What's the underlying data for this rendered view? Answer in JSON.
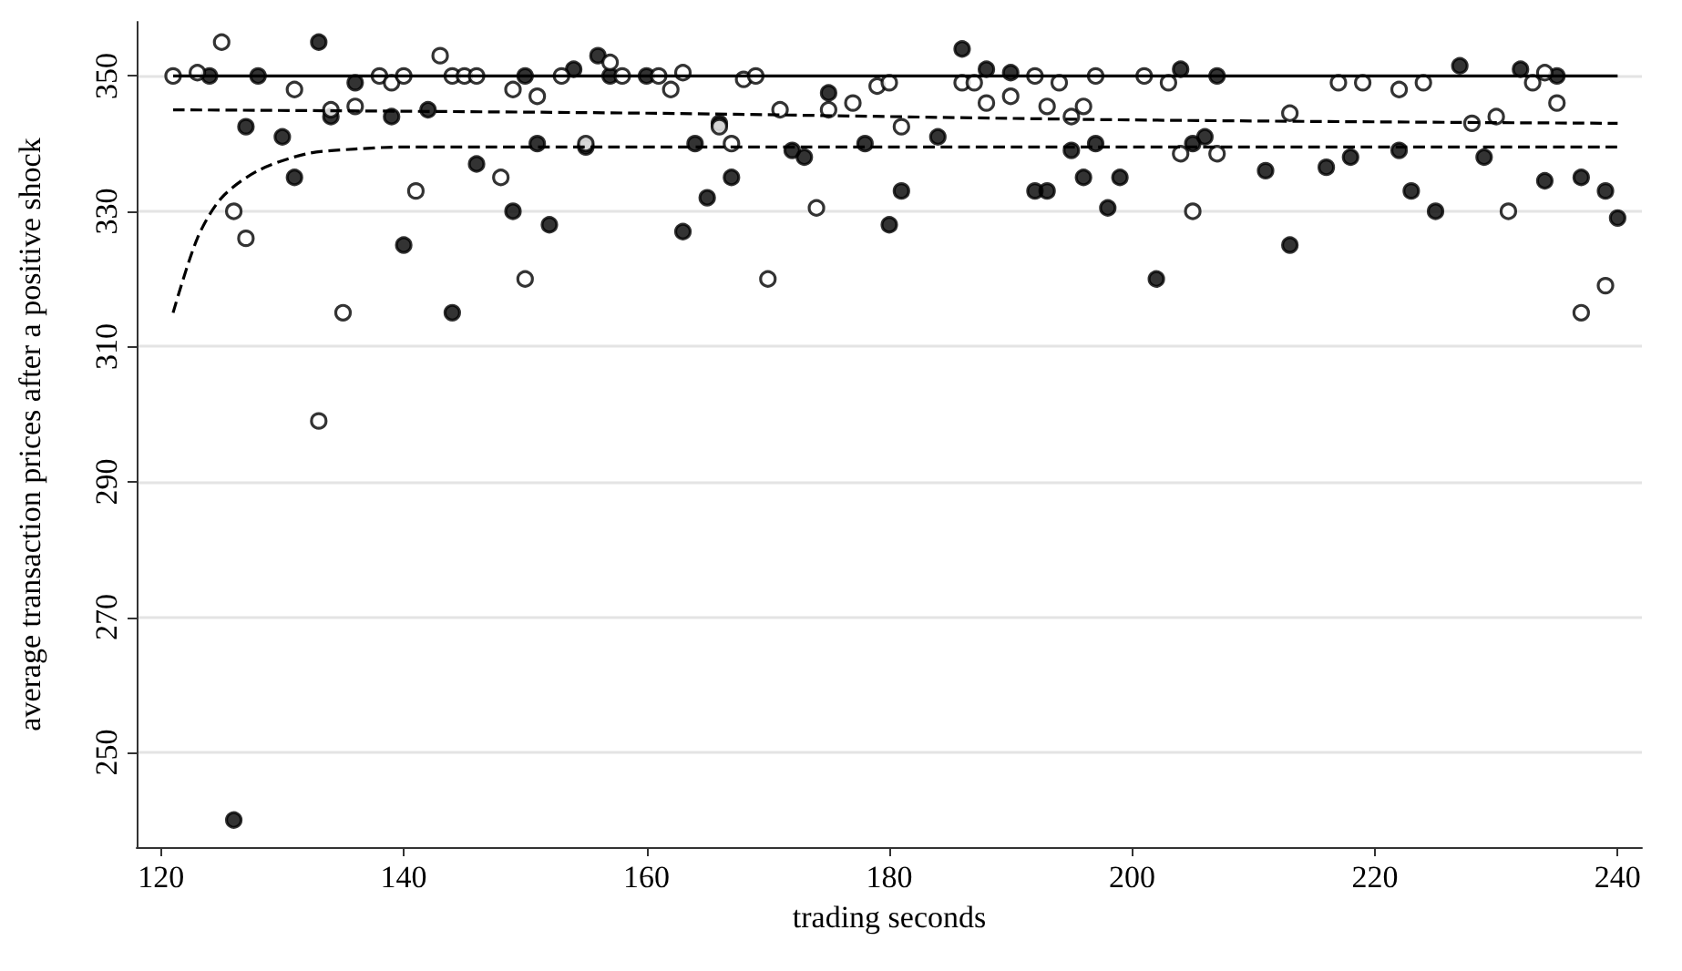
{
  "chart_data": {
    "type": "scatter",
    "xlabel": "trading seconds",
    "ylabel": "average transaction prices after a positive shock",
    "xlim": [
      118,
      242
    ],
    "xticks": [
      120,
      140,
      160,
      180,
      200,
      220,
      240
    ],
    "ylim": [
      236,
      358
    ],
    "yticks": [
      250,
      270,
      290,
      310,
      330,
      350
    ],
    "grid": "y",
    "series": [
      {
        "color": "#000000",
        "marker": "circle",
        "x": [
          124,
          126,
          127,
          128,
          130,
          131,
          133,
          134,
          136,
          139,
          140,
          142,
          144,
          146,
          149,
          150,
          151,
          152,
          154,
          155,
          156,
          157,
          160,
          163,
          164,
          165,
          166,
          167,
          172,
          173,
          175,
          178,
          180,
          181,
          184,
          186,
          188,
          190,
          192,
          193,
          195,
          196,
          197,
          198,
          199,
          202,
          204,
          205,
          206,
          207,
          211,
          213,
          216,
          218,
          222,
          223,
          225,
          227,
          229,
          232,
          234,
          235,
          237,
          239,
          240
        ],
        "values": [
          350,
          240,
          342.5,
          350,
          341,
          335,
          355,
          344,
          349,
          344,
          325,
          345,
          315,
          337,
          330,
          350,
          340,
          328,
          351,
          339.5,
          353,
          350,
          350,
          327,
          340,
          332,
          343,
          335,
          339,
          338,
          347.5,
          340,
          328,
          333,
          341,
          354,
          351,
          350.5,
          333,
          333,
          339,
          335,
          340,
          330.5,
          335,
          320,
          351,
          340,
          341,
          350,
          336,
          325,
          336.5,
          338,
          339,
          333,
          330,
          351.5,
          338,
          351,
          334.5,
          350,
          335,
          333,
          329
        ]
      },
      {
        "color": "#ffffff",
        "marker": "circle",
        "x": [
          121,
          123,
          125,
          126,
          127,
          131,
          133,
          134,
          135,
          136,
          138,
          139,
          140,
          141,
          143,
          144,
          145,
          146,
          148,
          149,
          150,
          151,
          153,
          155,
          157,
          158,
          161,
          162,
          163,
          166,
          167,
          168,
          169,
          170,
          171,
          174,
          175,
          177,
          179,
          180,
          181,
          186,
          187,
          188,
          190,
          192,
          193,
          194,
          195,
          196,
          197,
          201,
          203,
          204,
          205,
          207,
          213,
          217,
          219,
          222,
          224,
          228,
          230,
          231,
          233,
          234,
          235,
          237,
          239
        ],
        "values": [
          350,
          350.5,
          355,
          330,
          326,
          348,
          299,
          345,
          315,
          345.5,
          350,
          349,
          350,
          333,
          353,
          350,
          350,
          350,
          335,
          348,
          320,
          347,
          350,
          340,
          352,
          350,
          350,
          348,
          350.5,
          342.5,
          340,
          349.5,
          350,
          320,
          345,
          330.5,
          345,
          346,
          348.5,
          349,
          342.5,
          349,
          349,
          346,
          347,
          350,
          345.5,
          349,
          344,
          345.5,
          350,
          350,
          349,
          338.5,
          330,
          338.5,
          344.5,
          349,
          349,
          348,
          349,
          343,
          344,
          330,
          349,
          350.5,
          346,
          315,
          319
        ]
      },
      {
        "type": "line",
        "color": "#000000",
        "marker": "none",
        "line_style": "solid",
        "x": [
          121,
          240
        ],
        "values": [
          350,
          350
        ]
      },
      {
        "type": "line",
        "color": "#000000",
        "marker": "none",
        "line_style": "dashed",
        "x": [
          121,
          160,
          200,
          240
        ],
        "values": [
          345,
          344.5,
          343.5,
          343
        ]
      },
      {
        "type": "line",
        "color": "#000000",
        "marker": "none",
        "line_style": "dashed",
        "x": [
          121,
          123,
          125,
          128,
          132,
          136,
          140,
          240
        ],
        "values": [
          315,
          326,
          332,
          336,
          338.5,
          339.2,
          339.5,
          339.5
        ]
      }
    ]
  }
}
